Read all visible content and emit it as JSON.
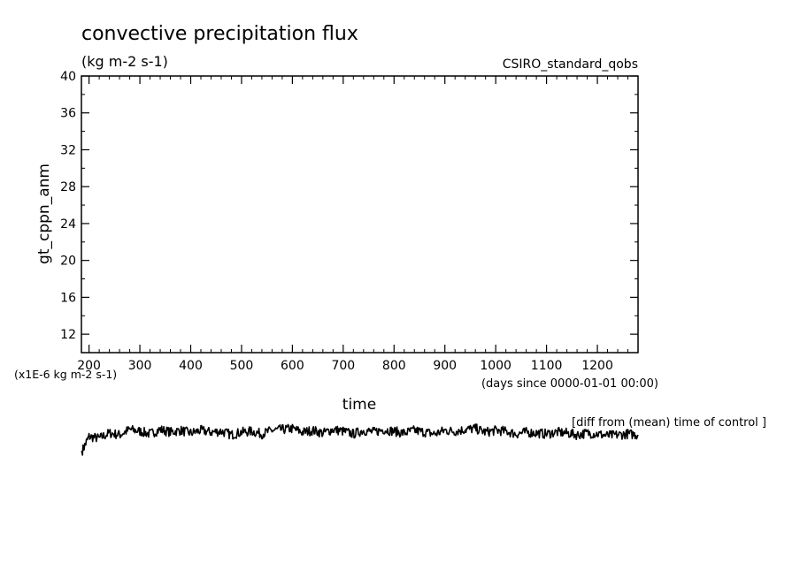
{
  "chart_data": {
    "type": "line",
    "title": "convective precipitation flux",
    "subtitle": "(kg m-2 s-1)",
    "experiment": "CSIRO_standard_qobs",
    "ylabel": "gt_cppn_anm",
    "xlabel": "time",
    "x_units": "(days since 0000-01-01 00:00)",
    "y_scale_note": "(x1E-6 kg m-2 s-1)",
    "series_note": "[diff from (mean) time of control ]",
    "xlim": [
      185,
      1280
    ],
    "ylim": [
      10,
      40
    ],
    "x_ticks": [
      "200",
      "300",
      "400",
      "500",
      "600",
      "700",
      "800",
      "900",
      "1000",
      "1100",
      "1200"
    ],
    "y_ticks": [
      "12",
      "16",
      "20",
      "24",
      "28",
      "32",
      "36",
      "40"
    ],
    "grid": false,
    "series": [
      {
        "x": [
          185,
          200,
          220,
          240,
          260,
          280,
          300,
          320,
          340,
          360,
          380,
          400,
          420,
          440,
          460,
          480,
          500,
          520,
          540,
          560,
          580,
          600,
          620,
          640,
          660,
          680,
          700,
          720,
          740,
          760,
          780,
          800,
          820,
          840,
          860,
          880,
          900,
          920,
          940,
          960,
          980,
          1000,
          1020,
          1040,
          1060,
          1080,
          1100,
          1120,
          1140,
          1160,
          1180,
          1200,
          1220,
          1240,
          1260,
          1280
        ],
        "y": [
          -0.95,
          -0.05,
          -0.15,
          0.15,
          0.05,
          0.35,
          0.25,
          0.1,
          0.35,
          0.2,
          0.3,
          0.15,
          0.3,
          0.2,
          0.25,
          0.05,
          0.2,
          0.25,
          0.1,
          0.3,
          0.35,
          0.4,
          0.2,
          0.3,
          0.15,
          0.35,
          0.25,
          0.1,
          0.3,
          0.2,
          0.35,
          0.25,
          0.15,
          0.3,
          0.2,
          0.1,
          0.3,
          0.25,
          0.35,
          0.4,
          0.2,
          0.3,
          0.25,
          0.1,
          0.2,
          0.15,
          0.1,
          0.2,
          0.15,
          0.05,
          0.15,
          0.1,
          0.0,
          0.05,
          0.1,
          0.05
        ]
      }
    ]
  }
}
